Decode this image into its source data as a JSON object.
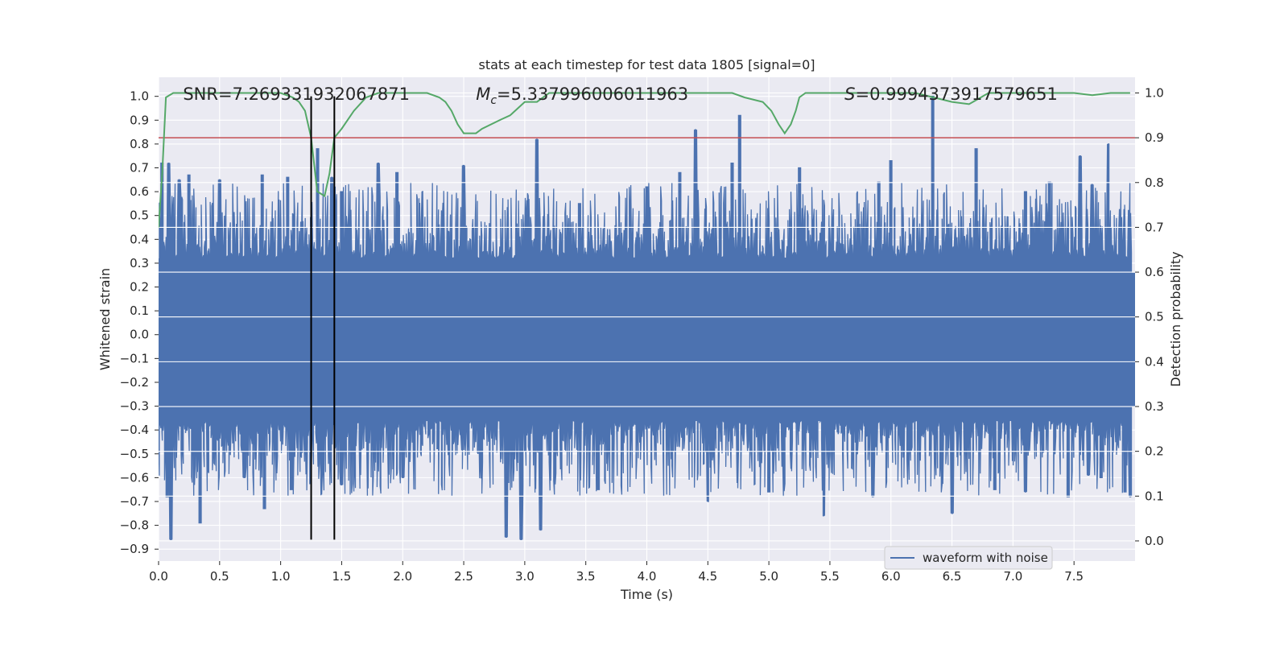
{
  "chart_data": {
    "type": "line",
    "title": "stats at each timestep for test data 1805 [signal=0]",
    "xlabel": "Time (s)",
    "ylabel": "Whitened strain",
    "y2label": "Detection probability",
    "xlim": [
      0.0,
      8.0
    ],
    "ylim": [
      -0.95,
      1.08
    ],
    "y2lim": [
      -0.045,
      1.035
    ],
    "xticks": [
      0.0,
      0.5,
      1.0,
      1.5,
      2.0,
      2.5,
      3.0,
      3.5,
      4.0,
      4.5,
      5.0,
      5.5,
      6.0,
      6.5,
      7.0,
      7.5
    ],
    "xtick_labels": [
      "0.0",
      "0.5",
      "1.0",
      "1.5",
      "2.0",
      "2.5",
      "3.0",
      "3.5",
      "4.0",
      "4.5",
      "5.0",
      "5.5",
      "6.0",
      "6.5",
      "7.0",
      "7.5"
    ],
    "yticks": [
      1.0,
      0.9,
      0.8,
      0.7,
      0.6,
      0.5,
      0.4,
      0.3,
      0.2,
      0.1,
      0.0,
      -0.1,
      -0.2,
      -0.3,
      -0.4,
      -0.5,
      -0.6,
      -0.7,
      -0.8,
      -0.9
    ],
    "ytick_labels": [
      "1.0",
      "0.9",
      "0.8",
      "0.7",
      "0.6",
      "0.5",
      "0.4",
      "0.3",
      "0.2",
      "0.1",
      "0.0",
      "-0.1",
      "-0.2",
      "-0.3",
      "-0.4",
      "-0.5",
      "-0.6",
      "-0.7",
      "-0.8",
      "-0.9"
    ],
    "y2ticks": [
      1.0,
      0.9,
      0.8,
      0.7,
      0.6,
      0.5,
      0.4,
      0.3,
      0.2,
      0.1,
      0.0
    ],
    "y2tick_labels": [
      "1.0",
      "0.9",
      "0.8",
      "0.7",
      "0.6",
      "0.5",
      "0.4",
      "0.3",
      "0.2",
      "0.1",
      "0.0"
    ],
    "annotations": {
      "snr": "SNR=7.269331932067871",
      "mc_symbol": "M",
      "mc_subscript": "c",
      "mc_value": "=5.337996006011963",
      "s_symbol": "S",
      "s_value": "=0.9994373917579651"
    },
    "threshold": {
      "axis": "right",
      "value": 0.9
    },
    "vlines": [
      1.25,
      1.44
    ],
    "vline_range": [
      -0.86,
      1.0
    ],
    "waveform": {
      "name": "waveform with noise",
      "band_low": -0.3,
      "band_high": 0.26,
      "peaks_pos": [
        [
          0.03,
          0.72
        ],
        [
          0.08,
          0.72
        ],
        [
          0.17,
          0.65
        ],
        [
          0.25,
          0.67
        ],
        [
          0.5,
          0.65
        ],
        [
          0.85,
          0.67
        ],
        [
          1.06,
          0.66
        ],
        [
          1.3,
          0.78
        ],
        [
          1.42,
          0.66
        ],
        [
          1.5,
          0.6
        ],
        [
          1.8,
          0.72
        ],
        [
          1.95,
          0.68
        ],
        [
          2.5,
          0.71
        ],
        [
          3.1,
          0.82
        ],
        [
          3.45,
          0.55
        ],
        [
          4.0,
          0.62
        ],
        [
          4.27,
          0.68
        ],
        [
          4.4,
          0.86
        ],
        [
          4.7,
          0.72
        ],
        [
          4.76,
          0.92
        ],
        [
          5.25,
          0.7
        ],
        [
          5.9,
          0.64
        ],
        [
          6.0,
          0.73
        ],
        [
          6.34,
          1.0
        ],
        [
          6.7,
          0.78
        ],
        [
          7.1,
          0.6
        ],
        [
          7.3,
          0.64
        ],
        [
          7.55,
          0.75
        ],
        [
          7.65,
          0.63
        ],
        [
          7.78,
          0.8
        ]
      ],
      "peaks_neg": [
        [
          0.07,
          -0.68
        ],
        [
          0.1,
          -0.86
        ],
        [
          0.34,
          -0.79
        ],
        [
          0.7,
          -0.6
        ],
        [
          0.87,
          -0.73
        ],
        [
          1.09,
          -0.65
        ],
        [
          1.5,
          -0.63
        ],
        [
          2.0,
          -0.6
        ],
        [
          2.85,
          -0.85
        ],
        [
          2.97,
          -0.86
        ],
        [
          3.13,
          -0.82
        ],
        [
          3.6,
          -0.65
        ],
        [
          4.5,
          -0.7
        ],
        [
          5.0,
          -0.66
        ],
        [
          5.45,
          -0.76
        ],
        [
          5.85,
          -0.68
        ],
        [
          6.5,
          -0.75
        ],
        [
          6.85,
          -0.65
        ],
        [
          7.1,
          -0.66
        ],
        [
          7.45,
          -0.68
        ],
        [
          7.62,
          -0.59
        ],
        [
          7.72,
          -0.6
        ],
        [
          7.92,
          -0.66
        ],
        [
          7.96,
          -0.68
        ]
      ]
    },
    "detection_probability": {
      "x": [
        0.0,
        0.03,
        0.06,
        0.12,
        0.2,
        0.4,
        0.8,
        1.0,
        1.1,
        1.15,
        1.2,
        1.25,
        1.3,
        1.36,
        1.4,
        1.44,
        1.5,
        1.6,
        1.7,
        1.8,
        2.0,
        2.2,
        2.3,
        2.35,
        2.4,
        2.45,
        2.5,
        2.55,
        2.6,
        2.65,
        2.8,
        2.88,
        3.0,
        3.1,
        3.2,
        3.4,
        3.5,
        3.6,
        3.8,
        4.0,
        4.5,
        4.7,
        4.8,
        4.95,
        5.02,
        5.08,
        5.13,
        5.18,
        5.22,
        5.25,
        5.3,
        5.5,
        6.0,
        6.2,
        6.5,
        6.64,
        6.8,
        7.0,
        7.5,
        7.65,
        7.8,
        7.96
      ],
      "y": [
        0.7,
        0.82,
        0.99,
        1.0,
        1.0,
        1.0,
        1.0,
        1.0,
        0.99,
        0.98,
        0.96,
        0.9,
        0.78,
        0.77,
        0.82,
        0.9,
        0.92,
        0.96,
        0.99,
        1.0,
        1.0,
        1.0,
        0.99,
        0.98,
        0.96,
        0.93,
        0.91,
        0.91,
        0.91,
        0.92,
        0.94,
        0.95,
        0.98,
        0.98,
        1.0,
        1.0,
        1.0,
        1.0,
        1.0,
        1.0,
        1.0,
        1.0,
        0.99,
        0.98,
        0.96,
        0.93,
        0.91,
        0.93,
        0.96,
        0.99,
        1.0,
        1.0,
        1.0,
        1.0,
        0.98,
        0.975,
        1.0,
        1.0,
        1.0,
        0.995,
        1.0,
        1.0
      ]
    },
    "legend": {
      "label": "waveform with noise",
      "position": "lower-right"
    },
    "colors": {
      "axes_bg": "#eaeaf2",
      "grid": "#ffffff",
      "waveform": "#4c72b0",
      "detection": "#55a868",
      "threshold": "#c44e52",
      "vline": "#000000",
      "text": "#262626"
    }
  }
}
